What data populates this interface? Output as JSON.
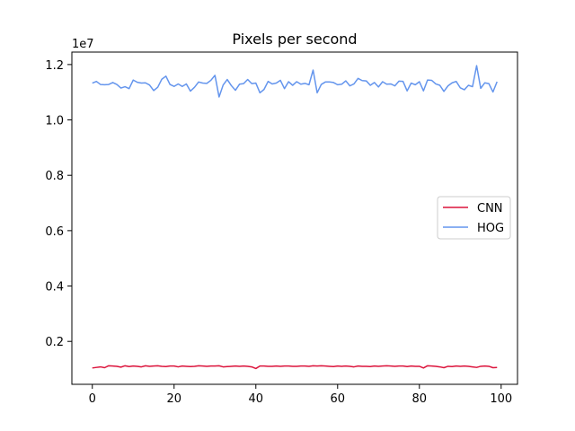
{
  "chart_data": {
    "type": "line",
    "title": "Pixels per second",
    "xlabel": "",
    "ylabel": "",
    "y_offset_label": "1e7",
    "xlim": [
      -5,
      104
    ],
    "ylim": [
      450000,
      12450000
    ],
    "x_ticks": [
      0,
      20,
      40,
      60,
      80,
      100
    ],
    "x_tick_labels": [
      "0",
      "20",
      "40",
      "60",
      "80",
      "100"
    ],
    "y_ticks": [
      2000000,
      4000000,
      6000000,
      8000000,
      10000000,
      12000000
    ],
    "y_tick_labels": [
      "0.2",
      "0.4",
      "0.6",
      "0.8",
      "1.0",
      "1.2"
    ],
    "grid": false,
    "legend_position": "center-right",
    "series": [
      {
        "name": "CNN",
        "color": "#dc143c",
        "values": [
          1040000,
          1060000,
          1080000,
          1050000,
          1120000,
          1110000,
          1100000,
          1070000,
          1120000,
          1090000,
          1110000,
          1100000,
          1080000,
          1120000,
          1100000,
          1110000,
          1120000,
          1100000,
          1090000,
          1110000,
          1110000,
          1080000,
          1110000,
          1100000,
          1090000,
          1100000,
          1120000,
          1110000,
          1100000,
          1110000,
          1110000,
          1120000,
          1080000,
          1090000,
          1100000,
          1110000,
          1100000,
          1110000,
          1100000,
          1080000,
          1020000,
          1110000,
          1110000,
          1100000,
          1100000,
          1110000,
          1100000,
          1110000,
          1110000,
          1100000,
          1100000,
          1110000,
          1110000,
          1100000,
          1120000,
          1110000,
          1120000,
          1110000,
          1100000,
          1090000,
          1110000,
          1100000,
          1110000,
          1100000,
          1080000,
          1110000,
          1100000,
          1100000,
          1090000,
          1110000,
          1100000,
          1110000,
          1120000,
          1110000,
          1100000,
          1110000,
          1110000,
          1090000,
          1110000,
          1100000,
          1100000,
          1040000,
          1120000,
          1110000,
          1100000,
          1080000,
          1050000,
          1100000,
          1090000,
          1110000,
          1100000,
          1110000,
          1100000,
          1080000,
          1060000,
          1100000,
          1110000,
          1100000,
          1050000,
          1060000
        ]
      },
      {
        "name": "HOG",
        "color": "#6495ed",
        "values": [
          11330000,
          11390000,
          11280000,
          11270000,
          11280000,
          11350000,
          11280000,
          11150000,
          11200000,
          11130000,
          11440000,
          11360000,
          11330000,
          11340000,
          11260000,
          11060000,
          11180000,
          11470000,
          11580000,
          11280000,
          11210000,
          11300000,
          11210000,
          11300000,
          11040000,
          11180000,
          11370000,
          11330000,
          11320000,
          11430000,
          11610000,
          10830000,
          11260000,
          11460000,
          11240000,
          11070000,
          11290000,
          11310000,
          11460000,
          11310000,
          11330000,
          10980000,
          11100000,
          11390000,
          11300000,
          11330000,
          11430000,
          11130000,
          11380000,
          11250000,
          11380000,
          11290000,
          11320000,
          11270000,
          11800000,
          10980000,
          11280000,
          11370000,
          11370000,
          11350000,
          11270000,
          11290000,
          11410000,
          11230000,
          11300000,
          11500000,
          11420000,
          11410000,
          11250000,
          11350000,
          11190000,
          11380000,
          11290000,
          11300000,
          11230000,
          11400000,
          11390000,
          11050000,
          11330000,
          11270000,
          11380000,
          11050000,
          11440000,
          11430000,
          11300000,
          11250000,
          11030000,
          11230000,
          11340000,
          11390000,
          11160000,
          11090000,
          11250000,
          11200000,
          11960000,
          11140000,
          11340000,
          11310000,
          11010000,
          11380000
        ]
      }
    ]
  }
}
